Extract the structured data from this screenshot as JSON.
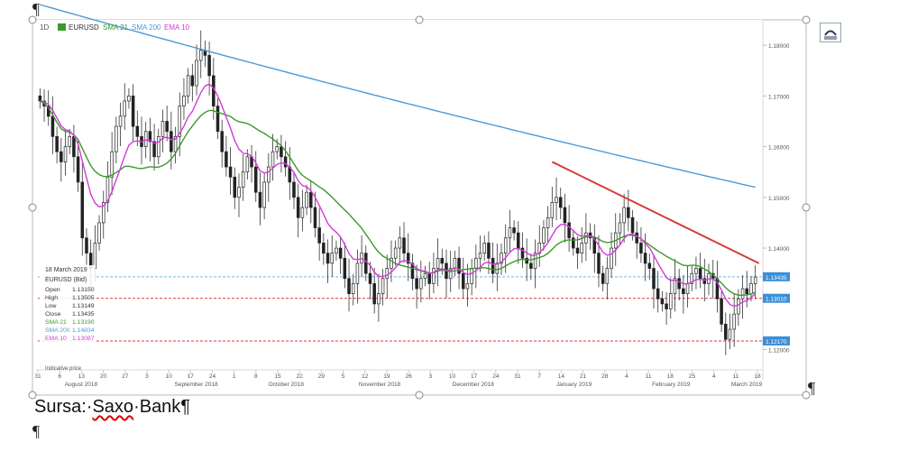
{
  "document": {
    "pilcrow": "¶",
    "caption_prefix": "Sursa:·",
    "caption_name": "Saxo",
    "caption_suffix": "·Bank¶"
  },
  "layout_options_icon": "layout-options-icon",
  "chart_data": {
    "type": "candlestick",
    "timeframe": "1D",
    "symbol": "EURUSD",
    "indicators": [
      {
        "name": "SMA 21",
        "color": "#3a9a2a"
      },
      {
        "name": "SMA 200",
        "color": "#4a9ad8"
      },
      {
        "name": "EMA 10",
        "color": "#d23ad8"
      }
    ],
    "ylim": [
      1.116,
      1.185
    ],
    "y_ticks": [
      "1.18000",
      "1.17000",
      "1.16000",
      "1.15000",
      "1.14000",
      "1.12000"
    ],
    "y_tick_values": [
      1.18,
      1.17,
      1.16,
      1.15,
      1.14,
      1.12
    ],
    "price_tags": [
      {
        "label": "1.13435",
        "value": 1.13435,
        "color": "#3a8fd8"
      },
      {
        "label": "1.13010",
        "value": 1.1301,
        "color": "#3a8fd8"
      },
      {
        "label": "1.12170",
        "value": 1.1217,
        "color": "#3a8fd8"
      }
    ],
    "horizontal_levels": [
      {
        "value": 1.13435,
        "style": "dashed",
        "color": "#7ab6e0"
      },
      {
        "value": 1.1301,
        "style": "dashed",
        "color": "#d83a3a"
      },
      {
        "value": 1.1217,
        "style": "dashed",
        "color": "#d83a3a"
      }
    ],
    "trendline": {
      "color": "#d83a3a",
      "from": {
        "x": "8 Jan 2019",
        "y": 1.157
      },
      "to": {
        "x": "18 Mar 2019",
        "y": 1.137
      }
    },
    "x_day_labels": [
      "31",
      "6",
      "13",
      "20",
      "27",
      "3",
      "10",
      "17",
      "24",
      "1",
      "8",
      "15",
      "22",
      "29",
      "5",
      "12",
      "19",
      "26",
      "3",
      "10",
      "17",
      "24",
      "31",
      "7",
      "14",
      "21",
      "28",
      "4",
      "11",
      "18",
      "25",
      "4",
      "11",
      "18"
    ],
    "x_month_labels": [
      "August 2018",
      "September 2018",
      "October 2018",
      "November 2018",
      "December 2018",
      "January 2019",
      "February 2019",
      "March 2019"
    ],
    "info_panel": {
      "date": "18 March 2019",
      "instrument": "EURUSD (Bid)",
      "rows": [
        {
          "label": "Open",
          "value": "1.13150"
        },
        {
          "label": "High",
          "value": "1.13505"
        },
        {
          "label": "Low",
          "value": "1.13149"
        },
        {
          "label": "Close",
          "value": "1.13435"
        },
        {
          "label": "SMA 21",
          "value": "1.13190",
          "color": "#3a9a2a"
        },
        {
          "label": "SMA 200",
          "value": "1.14834",
          "color": "#4a9ad8"
        },
        {
          "label": "EMA 10",
          "value": "1.13087",
          "color": "#d23ad8"
        }
      ]
    },
    "footer_text": "Indicative price",
    "closes": [
      1.169,
      1.168,
      1.166,
      1.162,
      1.159,
      1.157,
      1.16,
      1.162,
      1.158,
      1.153,
      1.142,
      1.139,
      1.136,
      1.141,
      1.145,
      1.149,
      1.154,
      1.159,
      1.164,
      1.166,
      1.169,
      1.17,
      1.164,
      1.162,
      1.16,
      1.163,
      1.161,
      1.158,
      1.162,
      1.165,
      1.163,
      1.159,
      1.162,
      1.168,
      1.17,
      1.174,
      1.172,
      1.177,
      1.179,
      1.178,
      1.174,
      1.168,
      1.163,
      1.159,
      1.156,
      1.154,
      1.15,
      1.152,
      1.155,
      1.158,
      1.156,
      1.151,
      1.148,
      1.153,
      1.156,
      1.159,
      1.16,
      1.158,
      1.156,
      1.153,
      1.15,
      1.146,
      1.148,
      1.151,
      1.148,
      1.144,
      1.141,
      1.139,
      1.137,
      1.139,
      1.14,
      1.138,
      1.134,
      1.131,
      1.133,
      1.137,
      1.139,
      1.135,
      1.133,
      1.129,
      1.131,
      1.134,
      1.136,
      1.138,
      1.14,
      1.142,
      1.139,
      1.137,
      1.134,
      1.132,
      1.134,
      1.135,
      1.133,
      1.136,
      1.138,
      1.137,
      1.134,
      1.136,
      1.138,
      1.135,
      1.132,
      1.133,
      1.136,
      1.138,
      1.139,
      1.141,
      1.138,
      1.135,
      1.137,
      1.139,
      1.142,
      1.144,
      1.143,
      1.14,
      1.138,
      1.137,
      1.136,
      1.139,
      1.141,
      1.144,
      1.146,
      1.149,
      1.15,
      1.148,
      1.145,
      1.142,
      1.14,
      1.139,
      1.141,
      1.143,
      1.142,
      1.139,
      1.135,
      1.133,
      1.136,
      1.14,
      1.143,
      1.145,
      1.148,
      1.146,
      1.143,
      1.141,
      1.139,
      1.137,
      1.136,
      1.132,
      1.13,
      1.129,
      1.128,
      1.131,
      1.134,
      1.132,
      1.131,
      1.133,
      1.135,
      1.136,
      1.134,
      1.133,
      1.135,
      1.134,
      1.13,
      1.125,
      1.122,
      1.124,
      1.127,
      1.13,
      1.132,
      1.131,
      1.133,
      1.1343
    ]
  }
}
